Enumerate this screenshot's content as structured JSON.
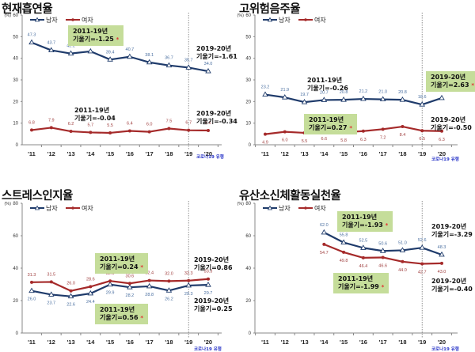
{
  "colors": {
    "male": "#1f3b6b",
    "female": "#a52a2a",
    "annotation_box": "#c5dd9a",
    "significance_star": "#e03030",
    "covid_label": "#2d39c9"
  },
  "chart_data": [
    {
      "type": "line",
      "title": "현재흡연율",
      "unit_label": "(%)",
      "categories": [
        "'11",
        "'12",
        "'13",
        "'14",
        "'15",
        "'16",
        "'17",
        "'18",
        "'19",
        "'20"
      ],
      "ylim": [
        0,
        60
      ],
      "yticks": [
        0,
        10,
        20,
        30,
        40,
        50,
        60
      ],
      "legend": [
        "남자",
        "여자"
      ],
      "legend_position": "top-left",
      "series": [
        {
          "name": "남자",
          "values": [
            47.3,
            43.7,
            42.2,
            43.2,
            39.4,
            40.7,
            38.1,
            36.7,
            35.7,
            34.0
          ],
          "labels": [
            "47.3",
            "43.7",
            "42.2",
            "43.2",
            "39.4",
            "40.7",
            "38.1",
            "36.7",
            "35.7",
            "34.0"
          ]
        },
        {
          "name": "여자",
          "values": [
            6.8,
            7.9,
            6.2,
            5.7,
            5.5,
            6.4,
            6.0,
            7.5,
            6.7,
            6.6
          ],
          "labels": [
            "6.8",
            "7.9",
            "6.2",
            "5.7",
            "5.5",
            "6.4",
            "6.0",
            "7.5",
            "6.7",
            "6.6"
          ]
        }
      ],
      "divider_after": "'19",
      "covid_label": "코로나19 유행",
      "annotations": [
        {
          "line1": "2011-19년",
          "line2": "기울기=-1.25",
          "significant": true,
          "boxed": true,
          "series": "남자"
        },
        {
          "line1": "2019-20년",
          "line2": "기울기=-1.61",
          "significant": false,
          "boxed": false,
          "series": "남자"
        },
        {
          "line1": "2011-19년",
          "line2": "기울기=-0.04",
          "significant": false,
          "boxed": false,
          "series": "여자"
        },
        {
          "line1": "2019-20년",
          "line2": "기울기=-0.34",
          "significant": false,
          "boxed": false,
          "series": "여자"
        }
      ]
    },
    {
      "type": "line",
      "title": "고위험음주율",
      "unit_label": "(%)",
      "categories": [
        "'11",
        "'12",
        "'13",
        "'14",
        "'15",
        "'16",
        "'17",
        "'18",
        "'19",
        "'20"
      ],
      "ylim": [
        0,
        60
      ],
      "yticks": [
        0,
        10,
        20,
        30,
        40,
        50,
        60
      ],
      "legend": [
        "남자",
        "여자"
      ],
      "legend_position": "top-left",
      "series": [
        {
          "name": "남자",
          "values": [
            23.2,
            21.9,
            19.7,
            20.7,
            20.8,
            21.2,
            21.0,
            20.8,
            18.6,
            21.6
          ],
          "labels": [
            "23.2",
            "21.9",
            "19.7",
            "20.7",
            "20.8",
            "21.2",
            "21.0",
            "20.8",
            "18.6",
            "21.6"
          ]
        },
        {
          "name": "여자",
          "values": [
            4.9,
            6.0,
            5.5,
            6.6,
            5.8,
            6.3,
            7.2,
            8.4,
            6.5,
            6.3
          ],
          "labels": [
            "4.9",
            "6.0",
            "5.5",
            "6.6",
            "5.8",
            "6.3",
            "7.2",
            "8.4",
            "6.5",
            "6.3"
          ]
        }
      ],
      "divider_after": "'19",
      "covid_label": "코로나19 유행",
      "annotations": [
        {
          "line1": "2011-19년",
          "line2": "기울기=-0.26",
          "significant": false,
          "boxed": false,
          "series": "남자"
        },
        {
          "line1": "2019-20년",
          "line2": "기울기=2.63",
          "significant": true,
          "boxed": true,
          "series": "남자"
        },
        {
          "line1": "2011-19년",
          "line2": "기울기=0.27",
          "significant": true,
          "boxed": true,
          "series": "여자"
        },
        {
          "line1": "2019-20년",
          "line2": "기울기=-0.50",
          "significant": false,
          "boxed": false,
          "series": "여자"
        }
      ]
    },
    {
      "type": "line",
      "title": "스트레스인지율",
      "unit_label": "(%)",
      "categories": [
        "'11",
        "'12",
        "'13",
        "'14",
        "'15",
        "'16",
        "'17",
        "'18",
        "'19",
        "'20"
      ],
      "ylim": [
        0,
        80
      ],
      "yticks": [
        0,
        20,
        40,
        60,
        80
      ],
      "legend": [
        "남자",
        "여자"
      ],
      "legend_position": "top-left",
      "series": [
        {
          "name": "남자",
          "values": [
            26.0,
            23.7,
            22.6,
            24.4,
            29.9,
            28.2,
            28.8,
            26.2,
            29.3,
            29.7
          ],
          "labels": [
            "26.0",
            "23.7",
            "22.6",
            "24.4",
            "29.9",
            "28.2",
            "28.8",
            "26.2",
            "29.3",
            "29.7"
          ]
        },
        {
          "name": "여자",
          "values": [
            31.3,
            31.5,
            26.0,
            28.6,
            32.1,
            30.6,
            32.4,
            32.0,
            32.3,
            33.3
          ],
          "labels": [
            "31.3",
            "31.5",
            "26.0",
            "28.6",
            "32.1",
            "30.6",
            "32.4",
            "32.0",
            "32.3",
            "33.3"
          ]
        }
      ],
      "divider_after": "'19",
      "covid_label": "코로나19 유행",
      "annotations": [
        {
          "line1": "2011-19년",
          "line2": "기울기=0.24",
          "significant": true,
          "boxed": true,
          "series": "여자"
        },
        {
          "line1": "2019-20년",
          "line2": "기울기=0.86",
          "significant": false,
          "boxed": false,
          "series": "여자"
        },
        {
          "line1": "2011-19년",
          "line2": "기울기=0.56",
          "significant": true,
          "boxed": true,
          "series": "남자"
        },
        {
          "line1": "2019-20년",
          "line2": "기울기=0.25",
          "significant": false,
          "boxed": false,
          "series": "남자"
        }
      ]
    },
    {
      "type": "line",
      "title": "유산소신체활동실천율",
      "unit_label": "(%)",
      "categories": [
        "'11",
        "'12",
        "'13",
        "'14",
        "'15",
        "'16",
        "'17",
        "'18",
        "'19",
        "'20"
      ],
      "ylim": [
        0,
        80
      ],
      "yticks": [
        0,
        20,
        40,
        60,
        80
      ],
      "legend": [
        "남자",
        "여자"
      ],
      "legend_position": "top-left",
      "series": [
        {
          "name": "남자",
          "values": [
            null,
            null,
            null,
            62.0,
            55.8,
            52.5,
            50.6,
            51.0,
            52.6,
            48.3
          ],
          "labels": [
            null,
            null,
            null,
            "62.0",
            "55.8",
            "52.5",
            "50.6",
            "51.0",
            "52.6",
            "48.3"
          ]
        },
        {
          "name": "여자",
          "values": [
            null,
            null,
            null,
            54.7,
            49.8,
            46.4,
            46.6,
            44.0,
            42.7,
            43.0
          ],
          "labels": [
            null,
            null,
            null,
            "54.7",
            "49.8",
            "46.4",
            "46.6",
            "44.0",
            "42.7",
            "43.0"
          ]
        }
      ],
      "divider_after": "'19",
      "covid_label": "코로나19 유행",
      "annotations": [
        {
          "line1": "2011-19년",
          "line2": "기울기=-1.93",
          "significant": true,
          "boxed": true,
          "series": "남자"
        },
        {
          "line1": "2019-20년",
          "line2": "기울기=-3.29",
          "significant": false,
          "boxed": false,
          "series": "남자"
        },
        {
          "line1": "2011-19년",
          "line2": "기울기=-1.99",
          "significant": true,
          "boxed": true,
          "series": "여자"
        },
        {
          "line1": "2019-20년",
          "line2": "기울기=-0.40",
          "significant": false,
          "boxed": false,
          "series": "여자"
        }
      ]
    }
  ]
}
